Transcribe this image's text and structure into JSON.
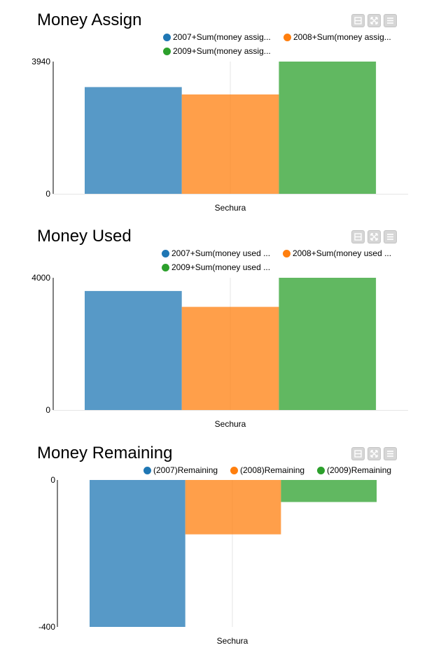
{
  "colors": {
    "blue": "#1f77b4",
    "orange": "#ff7f0e",
    "green": "#2ca02c"
  },
  "icons": [
    "minimize-icon",
    "fullscreen-icon",
    "menu-icon"
  ],
  "chart_data": [
    {
      "type": "bar",
      "title": "Money Assign",
      "categories": [
        "Sechura"
      ],
      "xlabel": "",
      "ylabel": "",
      "ylim": [
        0,
        3940
      ],
      "y_ticks": [
        "3940",
        "0"
      ],
      "legend_position": "top-right",
      "series": [
        {
          "name": "2007+Sum(money assig...",
          "values": [
            3180
          ],
          "color": "#1f77b4"
        },
        {
          "name": "2008+Sum(money assig...",
          "values": [
            2960
          ],
          "color": "#ff7f0e"
        },
        {
          "name": "2009+Sum(money assig...",
          "values": [
            3940
          ],
          "color": "#2ca02c"
        }
      ]
    },
    {
      "type": "bar",
      "title": "Money Used",
      "categories": [
        "Sechura"
      ],
      "xlabel": "",
      "ylabel": "",
      "ylim": [
        0,
        4000
      ],
      "y_ticks": [
        "4000",
        "0"
      ],
      "legend_position": "top-right",
      "series": [
        {
          "name": "2007+Sum(money used ...",
          "values": [
            3600
          ],
          "color": "#1f77b4"
        },
        {
          "name": "2008+Sum(money used ...",
          "values": [
            3120
          ],
          "color": "#ff7f0e"
        },
        {
          "name": "2009+Sum(money used ...",
          "values": [
            4000
          ],
          "color": "#2ca02c"
        }
      ]
    },
    {
      "type": "bar",
      "title": "Money Remaining",
      "categories": [
        "Sechura"
      ],
      "xlabel": "",
      "ylabel": "",
      "ylim": [
        -400,
        0
      ],
      "y_ticks": [
        "0",
        "-400"
      ],
      "legend_position": "top-right",
      "series": [
        {
          "name": "(2007)Remaining",
          "values": [
            -400
          ],
          "color": "#1f77b4"
        },
        {
          "name": "(2008)Remaining",
          "values": [
            -148
          ],
          "color": "#ff7f0e"
        },
        {
          "name": "(2009)Remaining",
          "values": [
            -60
          ],
          "color": "#2ca02c"
        }
      ]
    }
  ]
}
